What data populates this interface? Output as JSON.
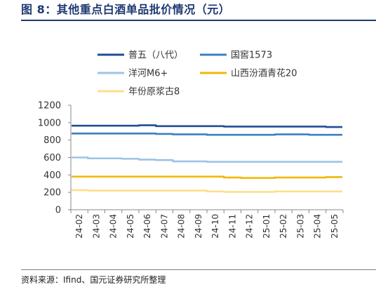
{
  "header": {
    "title": "图 8：其他重点白酒单品批价情况（元）"
  },
  "footer": {
    "source": "资料来源：Ifind、国元证券研究所整理"
  },
  "chart_data": {
    "type": "line",
    "ylim": [
      0,
      1200
    ],
    "yticks": [
      0,
      200,
      400,
      600,
      800,
      1000,
      1200
    ],
    "categories": [
      "24-02",
      "24-03",
      "24-04",
      "24-05",
      "24-06",
      "24-07",
      "24-08",
      "24-09",
      "24-10",
      "24-11",
      "24-12",
      "25-01",
      "25-02",
      "25-03",
      "25-04",
      "25-05"
    ],
    "legend": {
      "placement": "top",
      "columns": 2
    },
    "grid": false,
    "series": [
      {
        "name": "普五（八代）",
        "color": "#1f4e96",
        "values": [
          965,
          965,
          965,
          965,
          970,
          960,
          960,
          960,
          960,
          955,
          955,
          955,
          955,
          955,
          955,
          950
        ]
      },
      {
        "name": "国窖1573",
        "color": "#3c7fc4",
        "values": [
          875,
          875,
          875,
          875,
          875,
          870,
          865,
          865,
          860,
          860,
          860,
          860,
          865,
          865,
          860,
          860
        ]
      },
      {
        "name": "洋河M6+",
        "color": "#9cc3e6",
        "values": [
          600,
          590,
          590,
          585,
          575,
          570,
          555,
          555,
          550,
          550,
          550,
          550,
          550,
          550,
          550,
          550
        ]
      },
      {
        "name": "山西汾酒青花20",
        "color": "#f2b705",
        "values": [
          380,
          380,
          380,
          380,
          380,
          380,
          380,
          380,
          380,
          370,
          365,
          365,
          370,
          370,
          370,
          375
        ]
      },
      {
        "name": "年份原浆古8",
        "color": "#fbe08a",
        "values": [
          225,
          220,
          220,
          220,
          220,
          220,
          220,
          220,
          210,
          205,
          205,
          205,
          210,
          210,
          210,
          210
        ]
      }
    ]
  }
}
